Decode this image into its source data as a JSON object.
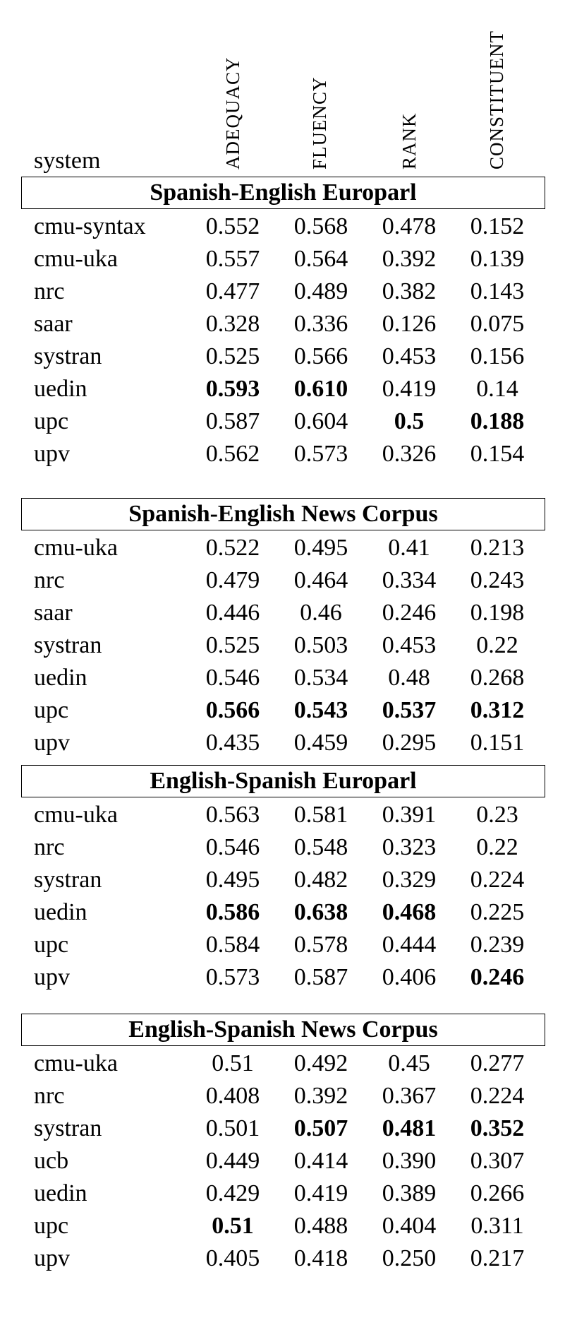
{
  "header": {
    "system": "system",
    "columns": [
      "ADEQUACY",
      "FLUENCY",
      "RANK",
      "CONSTITUENT"
    ]
  },
  "sections": [
    {
      "title": "Spanish-English Europarl",
      "rows": [
        {
          "system": "cmu-syntax",
          "values": [
            "0.552",
            "0.568",
            "0.478",
            "0.152"
          ],
          "bold": [
            false,
            false,
            false,
            false
          ]
        },
        {
          "system": "cmu-uka",
          "values": [
            "0.557",
            "0.564",
            "0.392",
            "0.139"
          ],
          "bold": [
            false,
            false,
            false,
            false
          ]
        },
        {
          "system": "nrc",
          "values": [
            "0.477",
            "0.489",
            "0.382",
            "0.143"
          ],
          "bold": [
            false,
            false,
            false,
            false
          ]
        },
        {
          "system": "saar",
          "values": [
            "0.328",
            "0.336",
            "0.126",
            "0.075"
          ],
          "bold": [
            false,
            false,
            false,
            false
          ]
        },
        {
          "system": "systran",
          "values": [
            "0.525",
            "0.566",
            "0.453",
            "0.156"
          ],
          "bold": [
            false,
            false,
            false,
            false
          ]
        },
        {
          "system": "uedin",
          "values": [
            "0.593",
            "0.610",
            "0.419",
            "0.14"
          ],
          "bold": [
            true,
            true,
            false,
            false
          ]
        },
        {
          "system": "upc",
          "values": [
            "0.587",
            "0.604",
            "0.5",
            "0.188"
          ],
          "bold": [
            false,
            false,
            true,
            true
          ]
        },
        {
          "system": "upv",
          "values": [
            "0.562",
            "0.573",
            "0.326",
            "0.154"
          ],
          "bold": [
            false,
            false,
            false,
            false
          ]
        }
      ]
    },
    {
      "title": "Spanish-English News Corpus",
      "rows": [
        {
          "system": "cmu-uka",
          "values": [
            "0.522",
            "0.495",
            "0.41",
            "0.213"
          ],
          "bold": [
            false,
            false,
            false,
            false
          ]
        },
        {
          "system": "nrc",
          "values": [
            "0.479",
            "0.464",
            "0.334",
            "0.243"
          ],
          "bold": [
            false,
            false,
            false,
            false
          ]
        },
        {
          "system": "saar",
          "values": [
            "0.446",
            "0.46",
            "0.246",
            "0.198"
          ],
          "bold": [
            false,
            false,
            false,
            false
          ]
        },
        {
          "system": "systran",
          "values": [
            "0.525",
            "0.503",
            "0.453",
            "0.22"
          ],
          "bold": [
            false,
            false,
            false,
            false
          ]
        },
        {
          "system": "uedin",
          "values": [
            "0.546",
            "0.534",
            "0.48",
            "0.268"
          ],
          "bold": [
            false,
            false,
            false,
            false
          ]
        },
        {
          "system": "upc",
          "values": [
            "0.566",
            "0.543",
            "0.537",
            "0.312"
          ],
          "bold": [
            true,
            true,
            true,
            true
          ]
        },
        {
          "system": "upv",
          "values": [
            "0.435",
            "0.459",
            "0.295",
            "0.151"
          ],
          "bold": [
            false,
            false,
            false,
            false
          ]
        }
      ]
    },
    {
      "title": "English-Spanish Europarl",
      "rows": [
        {
          "system": "cmu-uka",
          "values": [
            "0.563",
            "0.581",
            "0.391",
            "0.23"
          ],
          "bold": [
            false,
            false,
            false,
            false
          ]
        },
        {
          "system": "nrc",
          "values": [
            "0.546",
            "0.548",
            "0.323",
            "0.22"
          ],
          "bold": [
            false,
            false,
            false,
            false
          ]
        },
        {
          "system": "systran",
          "values": [
            "0.495",
            "0.482",
            "0.329",
            "0.224"
          ],
          "bold": [
            false,
            false,
            false,
            false
          ]
        },
        {
          "system": "uedin",
          "values": [
            "0.586",
            "0.638",
            "0.468",
            "0.225"
          ],
          "bold": [
            true,
            true,
            true,
            false
          ]
        },
        {
          "system": "upc",
          "values": [
            "0.584",
            "0.578",
            "0.444",
            "0.239"
          ],
          "bold": [
            false,
            false,
            false,
            false
          ]
        },
        {
          "system": "upv",
          "values": [
            "0.573",
            "0.587",
            "0.406",
            "0.246"
          ],
          "bold": [
            false,
            false,
            false,
            true
          ]
        }
      ]
    },
    {
      "title": "English-Spanish News Corpus",
      "rows": [
        {
          "system": "cmu-uka",
          "values": [
            "0.51",
            "0.492",
            "0.45",
            "0.277"
          ],
          "bold": [
            false,
            false,
            false,
            false
          ]
        },
        {
          "system": "nrc",
          "values": [
            "0.408",
            "0.392",
            "0.367",
            "0.224"
          ],
          "bold": [
            false,
            false,
            false,
            false
          ]
        },
        {
          "system": "systran",
          "values": [
            "0.501",
            "0.507",
            "0.481",
            "0.352"
          ],
          "bold": [
            false,
            true,
            true,
            true
          ]
        },
        {
          "system": "ucb",
          "values": [
            "0.449",
            "0.414",
            "0.390",
            "0.307"
          ],
          "bold": [
            false,
            false,
            false,
            false
          ]
        },
        {
          "system": "uedin",
          "values": [
            "0.429",
            "0.419",
            "0.389",
            "0.266"
          ],
          "bold": [
            false,
            false,
            false,
            false
          ]
        },
        {
          "system": "upc",
          "values": [
            "0.51",
            "0.488",
            "0.404",
            "0.311"
          ],
          "bold": [
            true,
            false,
            false,
            false
          ]
        },
        {
          "system": "upv",
          "values": [
            "0.405",
            "0.418",
            "0.250",
            "0.217"
          ],
          "bold": [
            false,
            false,
            false,
            false
          ]
        }
      ]
    }
  ]
}
